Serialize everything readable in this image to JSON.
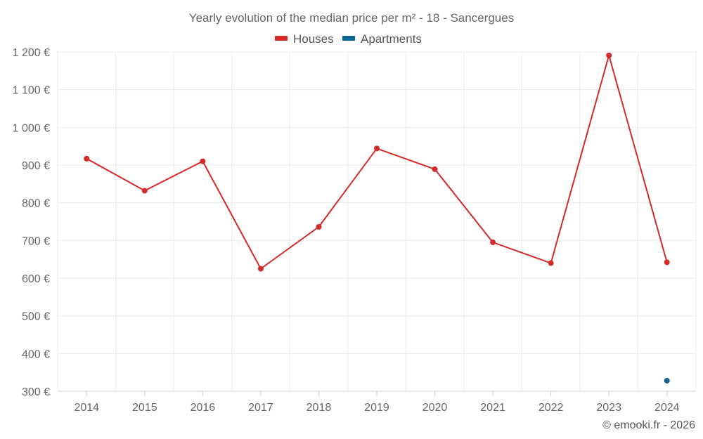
{
  "chart_data": {
    "type": "line",
    "title": "Yearly evolution of the median price per m² - 18 - Sancergues",
    "categories": [
      "2014",
      "2015",
      "2016",
      "2017",
      "2018",
      "2019",
      "2020",
      "2021",
      "2022",
      "2023",
      "2024"
    ],
    "series": [
      {
        "name": "Houses",
        "color": "#d42a2a",
        "values": [
          917,
          832,
          910,
          625,
          736,
          944,
          889,
          695,
          640,
          1191,
          642
        ]
      },
      {
        "name": "Apartments",
        "color": "#0f6496",
        "values": [
          null,
          null,
          null,
          null,
          null,
          null,
          null,
          null,
          null,
          null,
          328
        ]
      }
    ],
    "yticks": [
      300,
      400,
      500,
      600,
      700,
      800,
      900,
      1000,
      1100,
      1200
    ],
    "ytick_labels": [
      "300 €",
      "400 €",
      "500 €",
      "600 €",
      "700 €",
      "800 €",
      "900 €",
      "1 000 €",
      "1 100 €",
      "1 200 €"
    ],
    "ylim": [
      300,
      1200
    ],
    "xlabel": "",
    "ylabel": "",
    "grid": true,
    "legend_position": "top-center"
  },
  "credit": "© emooki.fr - 2026"
}
